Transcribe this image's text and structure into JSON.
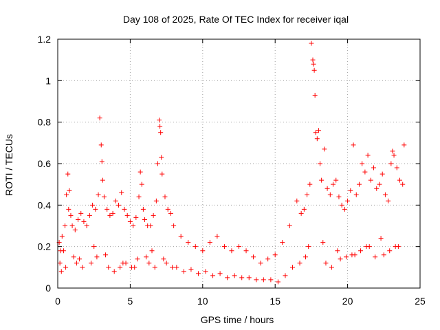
{
  "chart_data": {
    "type": "scatter",
    "title": "Day 108 of 2025, Rate Of TEC Index for receiver iqal",
    "xlabel": "GPS time / hours",
    "ylabel": "ROTI / TECUs",
    "xlim": [
      0,
      25
    ],
    "ylim": [
      0,
      1.2
    ],
    "x_ticks": [
      0,
      5,
      10,
      15,
      20,
      25
    ],
    "x_tick_labels": [
      "0",
      "5",
      "10",
      "15",
      "20",
      "25"
    ],
    "y_ticks": [
      0,
      0.2,
      0.4,
      0.6,
      0.8,
      1.0,
      1.2
    ],
    "y_tick_labels": [
      "0",
      "0.2",
      "0.4",
      "0.6",
      "0.8",
      "1",
      "1.2"
    ],
    "grid": true,
    "marker": "+",
    "marker_color": "#ff0000",
    "series": [
      {
        "name": "ROTI",
        "x": [
          0.1,
          0.2,
          0.3,
          0.5,
          0.6,
          0.7,
          0.75,
          0.8,
          0.9,
          1.0,
          1.2,
          1.4,
          1.6,
          1.8,
          2.0,
          2.2,
          2.4,
          2.6,
          2.8,
          2.9,
          3.0,
          3.05,
          3.1,
          3.2,
          3.4,
          3.6,
          3.8,
          4.0,
          4.2,
          4.4,
          4.6,
          4.8,
          5.0,
          5.2,
          5.4,
          5.6,
          5.7,
          5.8,
          5.9,
          6.0,
          6.2,
          6.4,
          6.6,
          6.8,
          6.9,
          7.0,
          7.05,
          7.1,
          7.15,
          7.2,
          7.4,
          7.6,
          7.8,
          8.0,
          8.5,
          9.0,
          9.5,
          10.0,
          10.5,
          11.0,
          11.5,
          12.0,
          12.5,
          13.0,
          13.5,
          14.0,
          14.5,
          15.0,
          15.5,
          16.0,
          16.5,
          16.8,
          17.0,
          17.2,
          17.4,
          17.5,
          17.6,
          17.65,
          17.7,
          17.75,
          17.8,
          17.9,
          18.0,
          18.1,
          18.2,
          18.4,
          18.6,
          18.8,
          19.0,
          19.2,
          19.4,
          19.6,
          19.8,
          20.0,
          20.2,
          20.4,
          20.6,
          20.8,
          21.0,
          21.2,
          21.4,
          21.6,
          21.8,
          22.0,
          22.2,
          22.4,
          22.6,
          22.8,
          23.0,
          23.1,
          23.2,
          23.4,
          23.6,
          23.8,
          23.9,
          0.15,
          0.4,
          1.1,
          1.5,
          2.5,
          3.3,
          4.5,
          5.1,
          6.1,
          6.5,
          7.3,
          8.2,
          9.2,
          10.2,
          11.2,
          12.2,
          13.2,
          14.2,
          15.2,
          16.2,
          17.3,
          18.3,
          19.3,
          20.3,
          21.3,
          22.3,
          23.3,
          0.25,
          0.55,
          1.3,
          1.7,
          2.3,
          2.7,
          3.5,
          3.9,
          4.3,
          4.7,
          5.3,
          5.5,
          6.3,
          6.7,
          7.5,
          7.9,
          8.7,
          9.7,
          10.7,
          11.7,
          12.7,
          13.7,
          14.7,
          15.7,
          16.7,
          17.1,
          18.5,
          18.9,
          19.5,
          19.9,
          20.5,
          20.9,
          21.5,
          21.9,
          22.5,
          22.9,
          23.5
        ],
        "y": [
          0.22,
          0.18,
          0.25,
          0.3,
          0.45,
          0.55,
          0.38,
          0.47,
          0.35,
          0.3,
          0.28,
          0.33,
          0.36,
          0.32,
          0.3,
          0.35,
          0.4,
          0.38,
          0.45,
          0.82,
          0.69,
          0.61,
          0.52,
          0.44,
          0.38,
          0.35,
          0.36,
          0.42,
          0.4,
          0.46,
          0.38,
          0.35,
          0.32,
          0.3,
          0.34,
          0.44,
          0.56,
          0.5,
          0.38,
          0.33,
          0.3,
          0.3,
          0.35,
          0.42,
          0.6,
          0.81,
          0.78,
          0.75,
          0.63,
          0.55,
          0.44,
          0.38,
          0.36,
          0.3,
          0.25,
          0.22,
          0.2,
          0.18,
          0.22,
          0.25,
          0.2,
          0.18,
          0.2,
          0.18,
          0.15,
          0.12,
          0.14,
          0.16,
          0.22,
          0.3,
          0.42,
          0.36,
          0.38,
          0.45,
          0.5,
          1.18,
          1.1,
          1.08,
          1.05,
          0.93,
          0.75,
          0.72,
          0.76,
          0.6,
          0.52,
          0.67,
          0.48,
          0.45,
          0.5,
          0.52,
          0.44,
          0.4,
          0.38,
          0.42,
          0.47,
          0.69,
          0.45,
          0.5,
          0.6,
          0.56,
          0.64,
          0.52,
          0.58,
          0.48,
          0.5,
          0.55,
          0.45,
          0.42,
          0.6,
          0.66,
          0.64,
          0.58,
          0.52,
          0.5,
          0.69,
          0.12,
          0.18,
          0.15,
          0.14,
          0.2,
          0.16,
          0.12,
          0.1,
          0.15,
          0.18,
          0.14,
          0.1,
          0.09,
          0.08,
          0.07,
          0.06,
          0.05,
          0.04,
          0.03,
          0.1,
          0.2,
          0.22,
          0.18,
          0.16,
          0.2,
          0.24,
          0.2,
          0.08,
          0.1,
          0.12,
          0.1,
          0.12,
          0.15,
          0.1,
          0.08,
          0.1,
          0.12,
          0.1,
          0.14,
          0.12,
          0.1,
          0.12,
          0.1,
          0.08,
          0.07,
          0.06,
          0.05,
          0.05,
          0.04,
          0.04,
          0.06,
          0.12,
          0.15,
          0.12,
          0.1,
          0.14,
          0.15,
          0.16,
          0.18,
          0.2,
          0.15,
          0.16,
          0.18,
          0.2
        ]
      }
    ]
  }
}
